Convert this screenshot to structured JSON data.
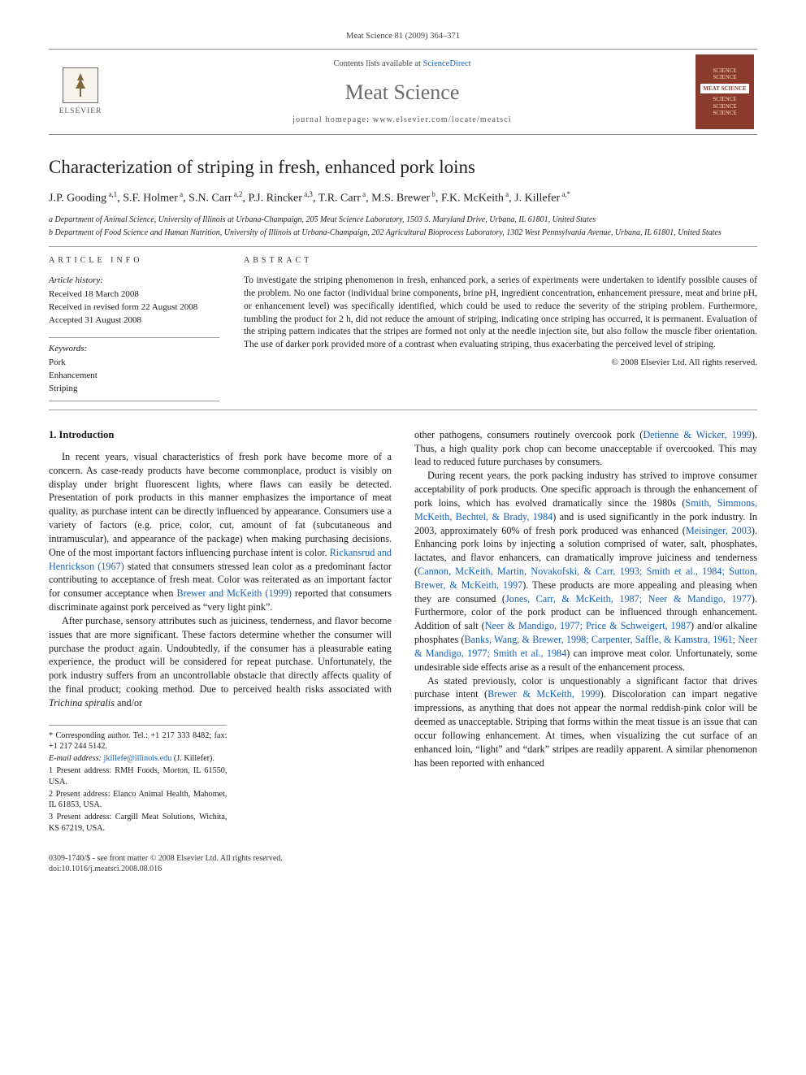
{
  "header": {
    "citation": "Meat Science 81 (2009) 364–371",
    "contents_prefix": "Contents lists available at ",
    "contents_link": "ScienceDirect",
    "journal": "Meat Science",
    "homepage_prefix": "journal homepage: ",
    "homepage": "www.elsevier.com/locate/meatsci",
    "elsevier": "ELSEVIER",
    "cover_lines": [
      "SCIENCE",
      "SCIENCE",
      "MEAT SCIENCE",
      "SCIENCE",
      "SCIENCE",
      "SCIENCE"
    ]
  },
  "title": "Characterization of striping in fresh, enhanced pork loins",
  "authors_html": "J.P. Gooding<sup> a,1</sup>, S.F. Holmer<sup> a</sup>, S.N. Carr<sup> a,2</sup>, P.J. Rincker<sup> a,3</sup>, T.R. Carr<sup> a</sup>, M.S. Brewer<sup> b</sup>, F.K. McKeith<sup> a</sup>, J. Killefer<sup> a,*</sup>",
  "affiliations": [
    "a Department of Animal Science, University of Illinois at Urbana-Champaign, 205 Meat Science Laboratory, 1503 S. Maryland Drive, Urbana, IL 61801, United States",
    "b Department of Food Science and Human Nutrition, University of Illinois at Urbana-Champaign, 202 Agricultural Bioprocess Laboratory, 1302 West Pennsylvania Avenue, Urbana, IL 61801, United States"
  ],
  "article_info": {
    "heading": "ARTICLE INFO",
    "history_label": "Article history:",
    "history": [
      "Received 18 March 2008",
      "Received in revised form 22 August 2008",
      "Accepted 31 August 2008"
    ],
    "keywords_label": "Keywords:",
    "keywords": [
      "Pork",
      "Enhancement",
      "Striping"
    ]
  },
  "abstract": {
    "heading": "ABSTRACT",
    "text": "To investigate the striping phenomenon in fresh, enhanced pork, a series of experiments were undertaken to identify possible causes of the problem. No one factor (individual brine components, brine pH, ingredient concentration, enhancement pressure, meat and brine pH, or enhancement level) was specifically identified, which could be used to reduce the severity of the striping problem. Furthermore, tumbling the product for 2 h, did not reduce the amount of striping, indicating once striping has occurred, it is permanent. Evaluation of the striping pattern indicates that the stripes are formed not only at the needle injection site, but also follow the muscle fiber orientation. The use of darker pork provided more of a contrast when evaluating striping, thus exacerbating the perceived level of striping.",
    "copyright": "© 2008 Elsevier Ltd. All rights reserved."
  },
  "section1_heading": "1. Introduction",
  "col_left": [
    "In recent years, visual characteristics of fresh pork have become more of a concern. As case-ready products have become commonplace, product is visibly on display under bright fluorescent lights, where flaws can easily be detected. Presentation of pork products in this manner emphasizes the importance of meat quality, as purchase intent can be directly influenced by appearance. Consumers use a variety of factors (e.g. price, color, cut, amount of fat (subcutaneous and intramuscular), and appearance of the package) when making purchasing decisions. One of the most important factors influencing purchase intent is color. <span class=\"ref\">Rickansrud and Henrickson (1967)</span> stated that consumers stressed lean color as a predominant factor contributing to acceptance of fresh meat. Color was reiterated as an important factor for consumer acceptance when <span class=\"ref\">Brewer and McKeith (1999)</span> reported that consumers discriminate against pork perceived as “very light pink”.",
    "After purchase, sensory attributes such as juiciness, tenderness, and flavor become issues that are more significant. These factors determine whether the consumer will purchase the product again. Undoubtedly, if the consumer has a pleasurable eating experience, the product will be considered for repeat purchase. Unfortunately, the pork industry suffers from an uncontrollable obstacle that directly affects quality of the final product; cooking method. Due to perceived health risks associated with <span class=\"taxon\">Trichina spiralis</span> and/or"
  ],
  "col_right": [
    "other pathogens, consumers routinely overcook pork (<span class=\"ref\">Detienne &amp; Wicker, 1999</span>). Thus, a high quality pork chop can become unacceptable if overcooked. This may lead to reduced future purchases by consumers.",
    "During recent years, the pork packing industry has strived to improve consumer acceptability of pork products. One specific approach is through the enhancement of pork loins, which has evolved dramatically since the 1980s (<span class=\"ref\">Smith, Simmons, McKeith, Bechtel, &amp; Brady, 1984</span>) and is used significantly in the pork industry. In 2003, approximately 60% of fresh pork produced was enhanced (<span class=\"ref\">Meisinger, 2003</span>). Enhancing pork loins by injecting a solution comprised of water, salt, phosphates, lactates, and flavor enhancers, can dramatically improve juiciness and tenderness (<span class=\"ref\">Cannon, McKeith, Martin, Novakofski, &amp; Carr, 1993; Smith et al., 1984; Sutton, Brewer, &amp; McKeith, 1997</span>). These products are more appealing and pleasing when they are consumed (<span class=\"ref\">Jones, Carr, &amp; McKeith, 1987; Neer &amp; Mandigo, 1977</span>). Furthermore, color of the pork product can be influenced through enhancement. Addition of salt (<span class=\"ref\">Neer &amp; Mandigo, 1977; Price &amp; Schweigert, 1987</span>) and/or alkaline phosphates (<span class=\"ref\">Banks, Wang, &amp; Brewer, 1998; Carpenter, Saffle, &amp; Kamstra, 1961; Neer &amp; Mandigo, 1977; Smith et al., 1984</span>) can improve meat color. Unfortunately, some undesirable side effects arise as a result of the enhancement process.",
    "As stated previously, color is unquestionably a significant factor that drives purchase intent (<span class=\"ref\">Brewer &amp; McKeith, 1999</span>). Discoloration can impart negative impressions, as anything that does not appear the normal reddish-pink color will be deemed as unacceptable. Striping that forms within the meat tissue is an issue that can occur following enhancement. At times, when visualizing the cut surface of an enhanced loin, “light” and “dark” stripes are readily apparent. A similar phenomenon has been reported with enhanced"
  ],
  "footnotes": {
    "corr": "* Corresponding author. Tel.: +1 217 333 8482; fax: +1 217 244 5142.",
    "email_label": "E-mail address:",
    "email": "jkillefe@illinois.edu",
    "email_who": "(J. Killefer).",
    "lines": [
      "1 Present address: RMH Foods, Morton, IL 61550, USA.",
      "2 Present address: Elanco Animal Health, Mahomet, IL 61853, USA.",
      "3 Present address: Cargill Meat Solutions, Wichita, KS 67219, USA."
    ]
  },
  "bottom": {
    "line1": "0309-1740/$ - see front matter © 2008 Elsevier Ltd. All rights reserved.",
    "line2": "doi:10.1016/j.meatsci.2008.08.016"
  },
  "colors": {
    "link": "#1461b8",
    "cover_bg": "#8a3b2e",
    "text": "#1a1a1a"
  }
}
